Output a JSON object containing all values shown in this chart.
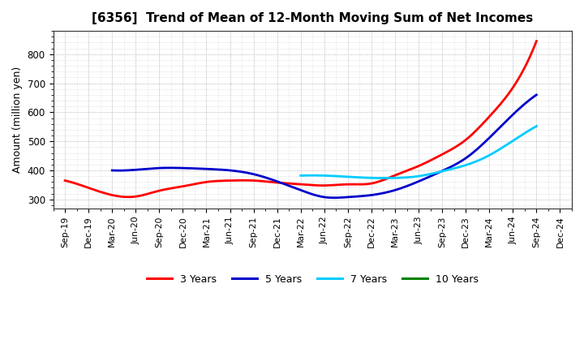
{
  "title": "[6356]  Trend of Mean of 12-Month Moving Sum of Net Incomes",
  "ylabel": "Amount (million yen)",
  "background_color": "#ffffff",
  "plot_bg_color": "#ffffff",
  "grid_color": "#999999",
  "ylim": [
    270,
    880
  ],
  "yticks": [
    300,
    400,
    500,
    600,
    700,
    800
  ],
  "x_labels": [
    "Sep-19",
    "Dec-19",
    "Mar-20",
    "Jun-20",
    "Sep-20",
    "Dec-20",
    "Mar-21",
    "Jun-21",
    "Sep-21",
    "Dec-21",
    "Mar-22",
    "Jun-22",
    "Sep-22",
    "Dec-22",
    "Mar-23",
    "Jun-23",
    "Sep-23",
    "Dec-23",
    "Mar-24",
    "Jun-24",
    "Sep-24",
    "Dec-24"
  ],
  "series_order": [
    "3 Years",
    "5 Years",
    "7 Years",
    "10 Years"
  ],
  "series": {
    "3 Years": {
      "color": "#ff0000",
      "data": [
        365,
        340,
        315,
        310,
        330,
        345,
        360,
        365,
        365,
        358,
        352,
        348,
        352,
        355,
        383,
        415,
        455,
        505,
        585,
        685,
        845,
        null
      ]
    },
    "5 Years": {
      "color": "#0000cc",
      "data": [
        null,
        null,
        400,
        402,
        408,
        408,
        405,
        400,
        387,
        362,
        332,
        308,
        308,
        315,
        332,
        362,
        398,
        442,
        512,
        592,
        660,
        null
      ]
    },
    "7 Years": {
      "color": "#00ccff",
      "data": [
        null,
        null,
        null,
        null,
        null,
        null,
        null,
        null,
        null,
        null,
        382,
        382,
        378,
        374,
        374,
        380,
        397,
        418,
        452,
        502,
        552,
        null
      ]
    },
    "10 Years": {
      "color": "#008000",
      "data": [
        null,
        null,
        null,
        null,
        null,
        null,
        null,
        null,
        null,
        null,
        null,
        null,
        null,
        null,
        null,
        null,
        null,
        null,
        null,
        null,
        null,
        null
      ]
    }
  },
  "legend_entries": [
    {
      "label": "3 Years",
      "color": "#ff0000"
    },
    {
      "label": "5 Years",
      "color": "#0000cc"
    },
    {
      "label": "7 Years",
      "color": "#00ccff"
    },
    {
      "label": "10 Years",
      "color": "#008000"
    }
  ]
}
